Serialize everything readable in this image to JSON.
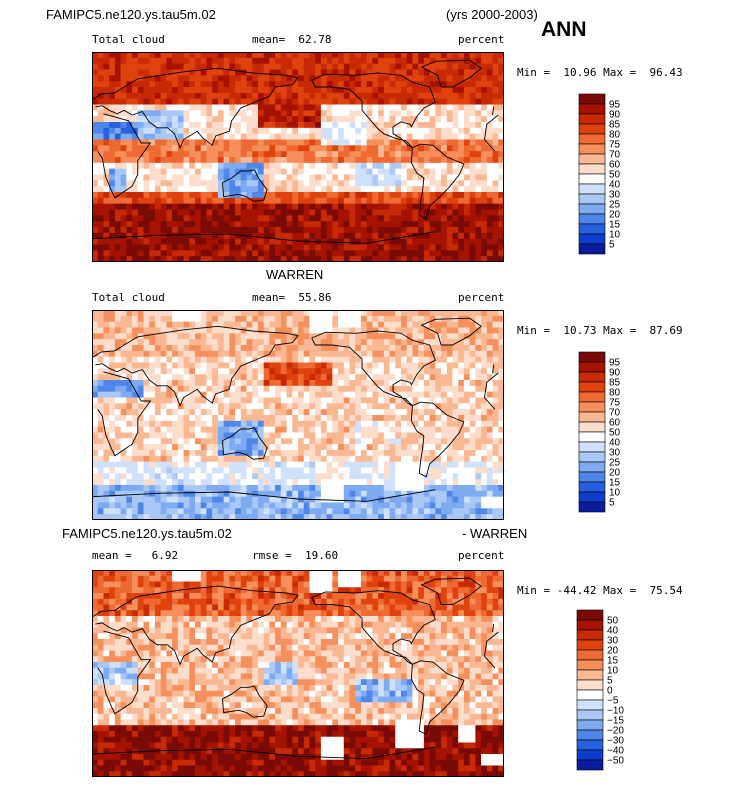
{
  "header": {
    "case_title": "FAMIPC5.ne120.ys.tau5m.02",
    "years": "(yrs 2000-2003)",
    "season": "ANN"
  },
  "panels": [
    {
      "title": "",
      "variable": "Total cloud",
      "stat_text": "mean=  62.78",
      "units": "percent",
      "minmax": "Min =  10.96 Max =  96.43"
    },
    {
      "title": "WARREN",
      "variable": "Total cloud",
      "stat_text": "mean=  55.86",
      "units": "percent",
      "minmax": "Min =  10.73 Max =  87.69"
    },
    {
      "title_left": "FAMIPC5.ne120.ys.tau5m.02",
      "title_right": "- WARREN",
      "stat_text": "mean =   6.92",
      "rmse_text": "rmse =  19.60",
      "units": "percent",
      "minmax": "Min = -44.42 Max =  75.54"
    }
  ],
  "colorbars": {
    "abs_levels": [
      "95",
      "90",
      "85",
      "80",
      "75",
      "70",
      "60",
      "50",
      "40",
      "30",
      "25",
      "20",
      "15",
      "10",
      "5"
    ],
    "abs_colors": [
      "#7a0a05",
      "#a51200",
      "#c82a06",
      "#e0420e",
      "#ef6a32",
      "#f58f5c",
      "#f9b792",
      "#fcdccb",
      "#ffffff",
      "#cfe1fa",
      "#a9c8f5",
      "#7daaf0",
      "#4e86ea",
      "#2460e0",
      "#0c3cce",
      "#0a1c9e"
    ],
    "diff_levels": [
      "50",
      "40",
      "30",
      "20",
      "15",
      "10",
      "5",
      "0",
      "−5",
      "−10",
      "−15",
      "−20",
      "−30",
      "−40",
      "−50"
    ],
    "diff_colors": [
      "#7a0a05",
      "#a51200",
      "#c82a06",
      "#e0420e",
      "#ef6a32",
      "#f58f5c",
      "#f9b792",
      "#fcdccb",
      "#ffffff",
      "#cfe1fa",
      "#a9c8f5",
      "#7daaf0",
      "#4e86ea",
      "#2460e0",
      "#0c3cce",
      "#0a1c9e"
    ]
  },
  "chart_data": [
    {
      "type": "heatmap",
      "title": "Total cloud",
      "units": "percent",
      "mean": 62.78,
      "min": 10.96,
      "max": 96.43,
      "contour_levels": [
        5,
        10,
        15,
        20,
        25,
        30,
        40,
        50,
        60,
        70,
        75,
        80,
        85,
        90,
        95
      ]
    },
    {
      "type": "heatmap",
      "title": "WARREN",
      "units": "percent",
      "mean": 55.86,
      "min": 10.73,
      "max": 87.69,
      "contour_levels": [
        5,
        10,
        15,
        20,
        25,
        30,
        40,
        50,
        60,
        70,
        75,
        80,
        85,
        90,
        95
      ]
    },
    {
      "type": "heatmap",
      "title": "FAMIPC5.ne120.ys.tau5m.02 - WARREN",
      "units": "percent",
      "mean": 6.92,
      "rmse": 19.6,
      "min": -44.42,
      "max": 75.54,
      "contour_levels": [
        -50,
        -40,
        -30,
        -20,
        -15,
        -10,
        -5,
        0,
        5,
        10,
        15,
        20,
        30,
        40,
        50
      ]
    }
  ]
}
